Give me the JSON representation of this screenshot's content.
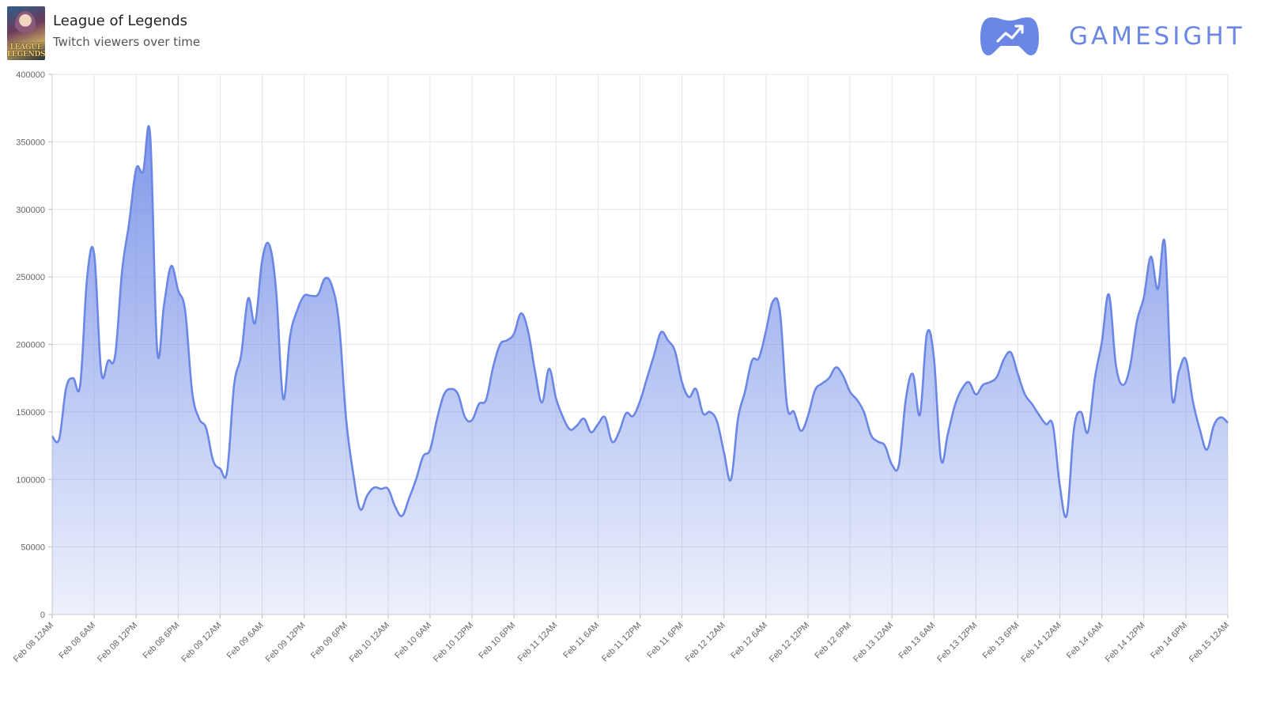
{
  "header": {
    "game_title": "League of Legends",
    "subtitle": "Twitch viewers over time",
    "thumb_text": "LEAGUE LEGENDS",
    "brand": "GAMESIGHT",
    "brand_color": "#6b87e6"
  },
  "chart_data": {
    "type": "area",
    "title": "League of Legends",
    "subtitle": "Twitch viewers over time",
    "xlabel": "",
    "ylabel": "",
    "ylim": [
      0,
      400000
    ],
    "yticks": [
      0,
      50000,
      100000,
      150000,
      200000,
      250000,
      300000,
      350000,
      400000
    ],
    "xlim_hours": [
      0,
      168
    ],
    "xtick_labels": [
      "Feb 08 12AM",
      "Feb 08 6AM",
      "Feb 08 12PM",
      "Feb 08 6PM",
      "Feb 09 12AM",
      "Feb 09 6AM",
      "Feb 09 12PM",
      "Feb 09 6PM",
      "Feb 10 12AM",
      "Feb 10 6AM",
      "Feb 10 12PM",
      "Feb 10 6PM",
      "Feb 11 12AM",
      "Feb 11 6AM",
      "Feb 11 12PM",
      "Feb 11 6PM",
      "Feb 12 12AM",
      "Feb 12 6AM",
      "Feb 12 12PM",
      "Feb 12 6PM",
      "Feb 13 12AM",
      "Feb 13 6AM",
      "Feb 13 12PM",
      "Feb 13 6PM",
      "Feb 14 12AM",
      "Feb 14 6AM",
      "Feb 14 12PM",
      "Feb 14 6PM",
      "Feb 15 12AM"
    ],
    "grid": true,
    "line_color": "#6b87e6",
    "series": [
      {
        "x_hours": [
          0,
          1,
          2,
          3,
          4,
          5,
          6,
          7,
          8,
          9,
          10,
          11,
          12,
          13,
          14,
          15,
          16,
          17,
          18,
          19,
          20,
          21,
          22,
          23,
          24,
          25,
          26,
          27,
          28,
          29,
          30,
          31,
          32,
          33,
          34,
          35,
          36,
          37,
          38,
          39,
          40,
          41,
          42,
          43,
          44,
          45,
          46,
          47,
          48,
          49,
          50,
          51,
          52,
          53,
          54,
          55,
          56,
          57,
          58,
          59,
          60,
          61,
          62,
          63,
          64,
          65,
          66,
          67,
          68,
          69,
          70,
          71,
          72,
          73,
          74,
          75,
          76,
          77,
          78,
          79,
          80,
          81,
          82,
          83,
          84,
          85,
          86,
          87,
          88,
          89,
          90,
          91,
          92,
          93,
          94,
          95,
          96,
          97,
          98,
          99,
          100,
          101,
          102,
          103,
          104,
          105,
          106,
          107,
          108,
          109,
          110,
          111,
          112,
          113,
          114,
          115,
          116,
          117,
          118,
          119,
          120,
          121,
          122,
          123,
          124,
          125,
          126,
          127,
          128,
          129,
          130,
          131,
          132,
          133,
          134,
          135,
          136,
          137,
          138,
          139,
          140,
          141,
          142,
          143,
          144,
          145,
          146,
          147,
          148,
          149,
          150,
          151,
          152,
          153,
          154,
          155,
          156,
          157,
          158,
          159,
          160,
          161,
          162,
          163,
          164,
          165,
          166,
          167,
          168
        ],
        "values": [
          132000,
          130000,
          168000,
          175000,
          170000,
          250000,
          267000,
          180000,
          188000,
          192000,
          255000,
          290000,
          330000,
          328000,
          355000,
          196000,
          230000,
          258000,
          240000,
          225000,
          165000,
          145000,
          138000,
          114000,
          108000,
          106000,
          170000,
          192000,
          234000,
          216000,
          262000,
          274000,
          240000,
          160000,
          206000,
          225000,
          236000,
          236000,
          237000,
          249000,
          243000,
          215000,
          145000,
          105000,
          78000,
          88000,
          94000,
          93000,
          93000,
          80000,
          73000,
          86000,
          100000,
          117000,
          122000,
          145000,
          163000,
          167000,
          163000,
          146000,
          144000,
          156000,
          159000,
          183000,
          200000,
          203000,
          208000,
          223000,
          210000,
          180000,
          157000,
          182000,
          160000,
          146000,
          137000,
          140000,
          145000,
          135000,
          141000,
          146000,
          128000,
          135000,
          149000,
          147000,
          158000,
          175000,
          192000,
          209000,
          203000,
          195000,
          172000,
          161000,
          167000,
          149000,
          150000,
          143000,
          120000,
          100000,
          145000,
          165000,
          188000,
          190000,
          210000,
          232000,
          224000,
          155000,
          150000,
          136000,
          147000,
          166000,
          171000,
          175000,
          183000,
          177000,
          165000,
          159000,
          150000,
          133000,
          128000,
          125000,
          111000,
          111000,
          160000,
          178000,
          148000,
          208000,
          190000,
          115000,
          134000,
          155000,
          167000,
          172000,
          163000,
          170000,
          172000,
          176000,
          189000,
          194000,
          178000,
          163000,
          156000,
          148000,
          141000,
          140000,
          95000,
          74000,
          137000,
          150000,
          135000,
          175000,
          202000,
          237000,
          185000,
          170000,
          183000,
          217000,
          235000,
          265000,
          241000,
          275000,
          162000,
          180000,
          189000,
          158000,
          137000,
          122000,
          140000,
          146000,
          142000
        ]
      }
    ]
  }
}
